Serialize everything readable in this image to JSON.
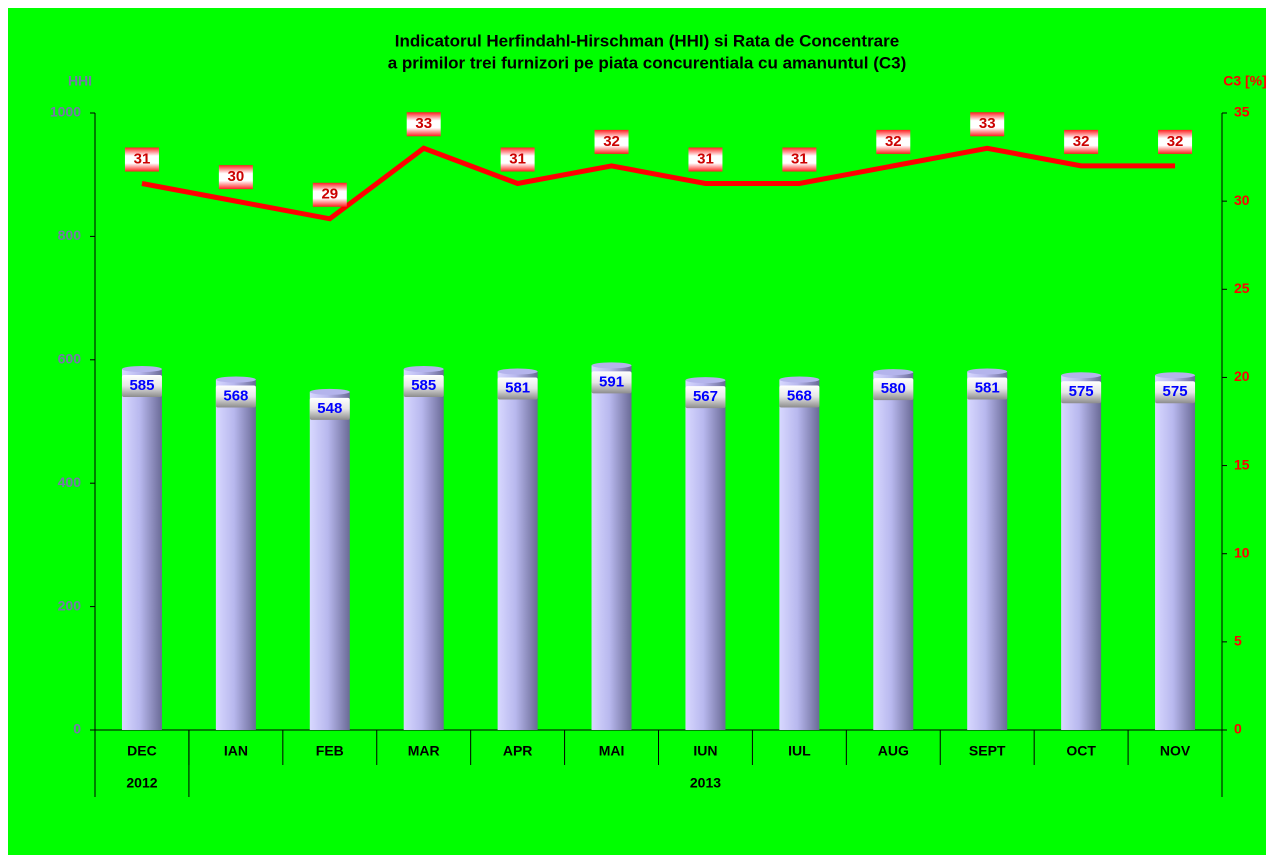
{
  "chart_data": {
    "type": "bar-line",
    "title": [
      "Indicatorul Herfindahl-Hirschman (HHI) si Rata de Concentrare",
      "a primilor trei furnizori pe piata concurentiala cu amanuntul (C3)"
    ],
    "y_label": "HHI",
    "y2_label": "C3 [%]",
    "categories": [
      "DEC",
      "IAN",
      "FEB",
      "MAR",
      "APR",
      "MAI",
      "IUN",
      "IUL",
      "AUG",
      "SEPT",
      "OCT",
      "NOV"
    ],
    "category_groups": [
      {
        "label": "2012",
        "span": 1
      },
      {
        "label": "2013",
        "span": 11
      }
    ],
    "series": [
      {
        "name": "HHI",
        "type": "bar",
        "color": "#b4b4ec",
        "values": [
          585,
          568,
          548,
          585,
          581,
          591,
          567,
          568,
          580,
          581,
          575,
          575
        ]
      },
      {
        "name": "C3",
        "type": "line",
        "axis": "y2",
        "color": "#ff0000",
        "values": [
          31,
          30,
          29,
          33,
          31,
          32,
          31,
          31,
          32,
          33,
          32,
          32
        ]
      }
    ],
    "ylim": [
      0,
      1000
    ],
    "yticks": [
      0,
      200,
      400,
      600,
      800,
      1000
    ],
    "y2lim": [
      0,
      35
    ],
    "y2ticks": [
      0,
      5,
      10,
      15,
      20,
      25,
      30,
      35
    ],
    "background": "#00ff00"
  }
}
